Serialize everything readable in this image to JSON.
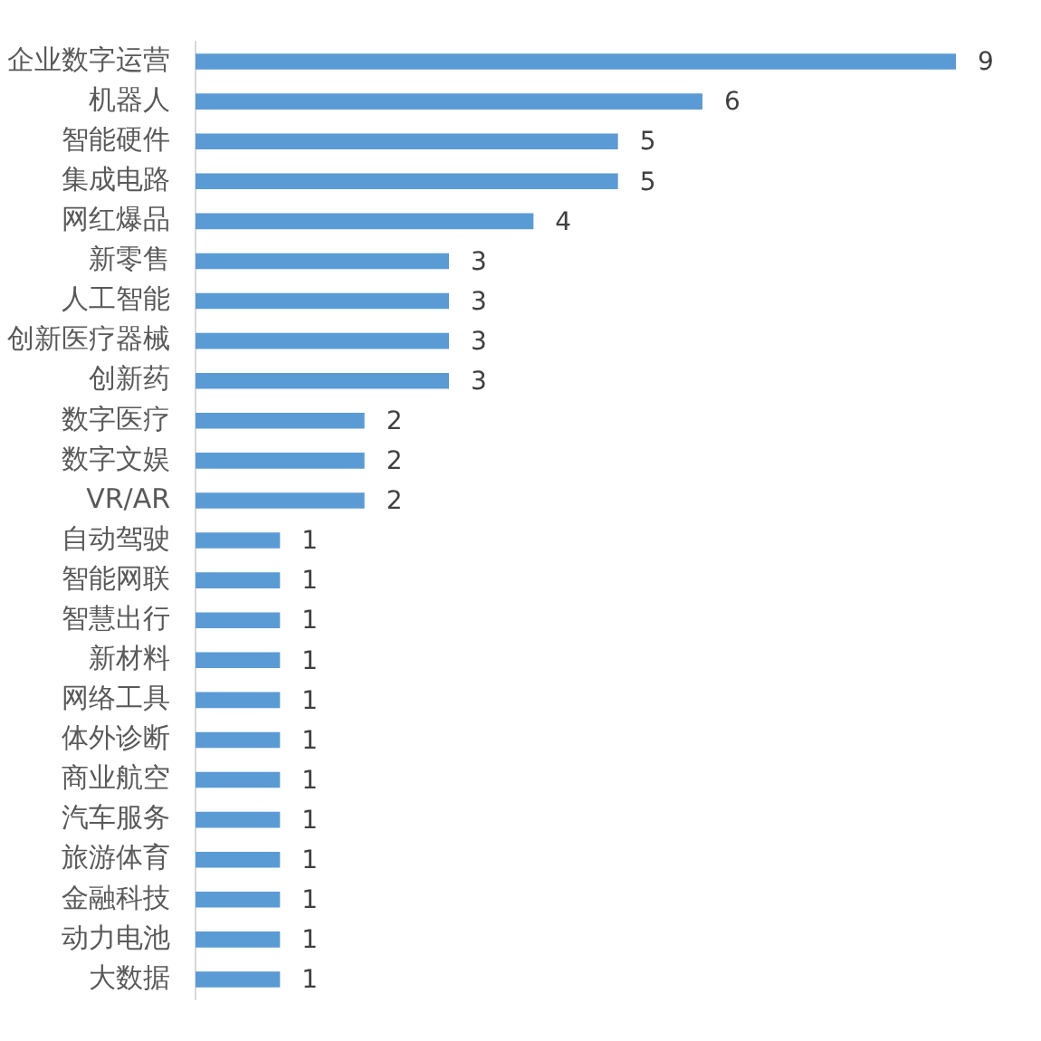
{
  "chart_data": {
    "type": "bar",
    "orientation": "horizontal",
    "categories": [
      "企业数字运营",
      "机器人",
      "智能硬件",
      "集成电路",
      "网红爆品",
      "新零售",
      "人工智能",
      "创新医疗器械",
      "创新药",
      "数字医疗",
      "数字文娱",
      "VR/AR",
      "自动驾驶",
      "智能网联",
      "智慧出行",
      "新材料",
      "网络工具",
      "体外诊断",
      "商业航空",
      "汽车服务",
      "旅游体育",
      "金融科技",
      "动力电池",
      "大数据"
    ],
    "values": [
      9,
      6,
      5,
      5,
      4,
      3,
      3,
      3,
      3,
      2,
      2,
      2,
      1,
      1,
      1,
      1,
      1,
      1,
      1,
      1,
      1,
      1,
      1,
      1
    ],
    "color": "#5b9bd5",
    "data_labels": true
  }
}
